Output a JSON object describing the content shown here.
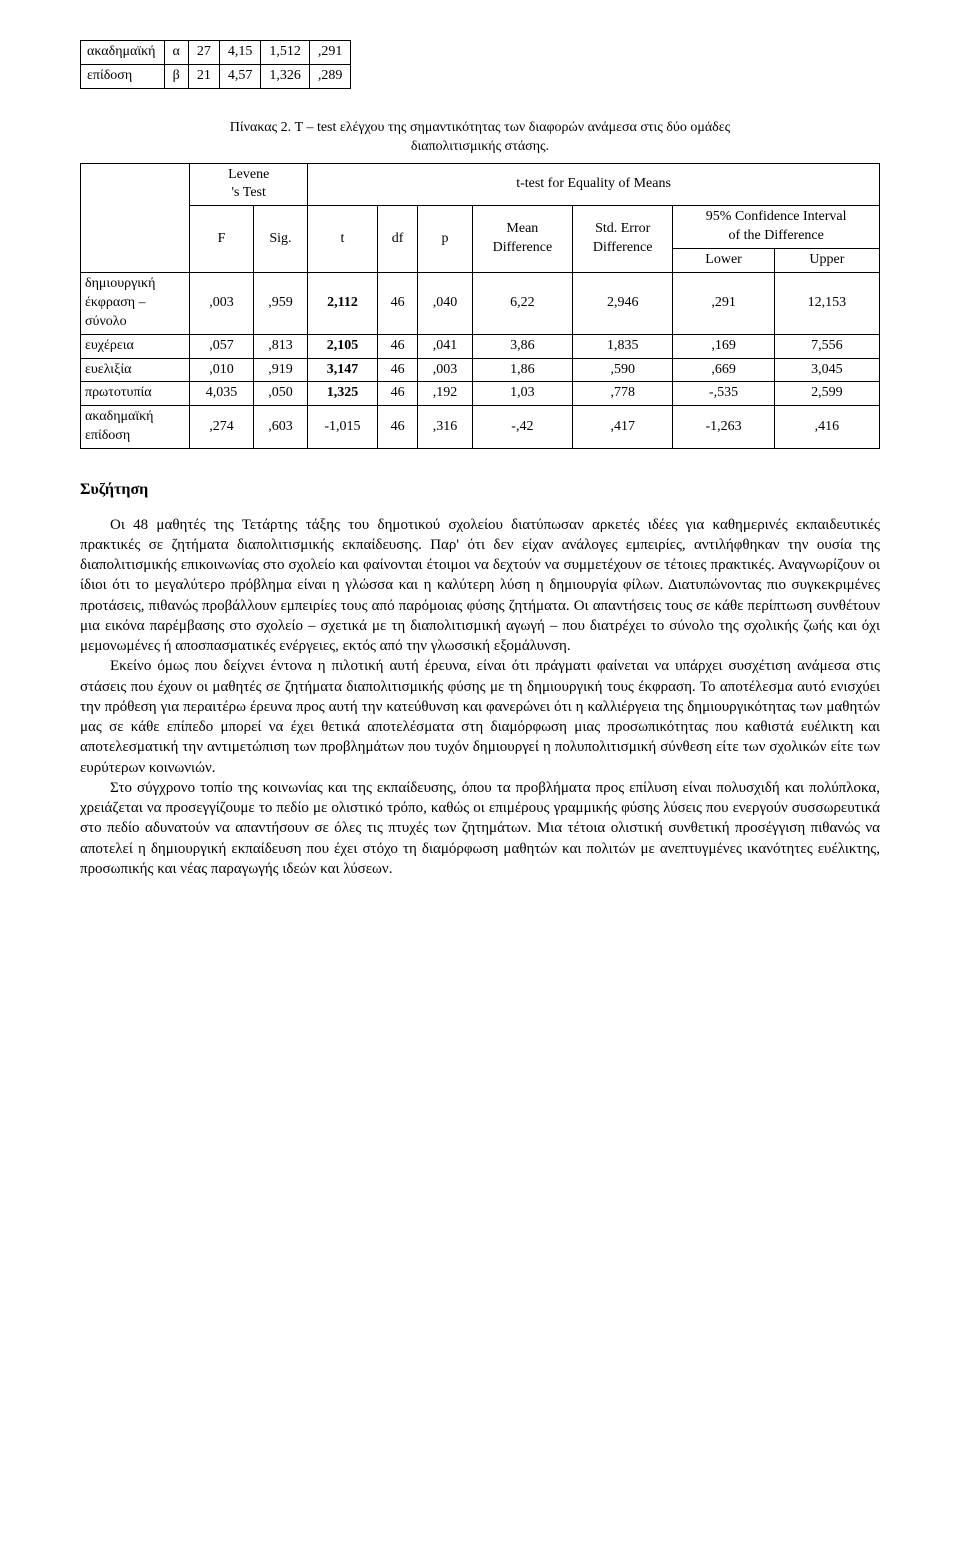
{
  "table1": {
    "rows": [
      {
        "label": "ακαδημαϊκή",
        "group": "α",
        "n": "27",
        "mean": "4,15",
        "sd": "1,512",
        "se": ",291"
      },
      {
        "label": "επίδοση",
        "group": "β",
        "n": "21",
        "mean": "4,57",
        "sd": "1,326",
        "se": ",289"
      }
    ],
    "col_widths": [
      "110",
      "40",
      "50",
      "70",
      "80",
      "80"
    ]
  },
  "table2": {
    "caption_line1": "Πίνακας 2. T – test ελέγχου της σημαντικότητας των διαφορών ανάμεσα στις δύο ομάδες",
    "caption_line2": "διαπολιτισμικής στάσης.",
    "header": {
      "levene": "Levene\n's Test",
      "ttest": "t-test for Equality of Means",
      "F": "F",
      "Sig": "Sig.",
      "t": "t",
      "df": "df",
      "p": "p",
      "mean_diff": "Mean\nDifference",
      "std_err": "Std. Error\nDifference",
      "ci": "95% Confidence Interval\nof the Difference",
      "lower": "Lower",
      "upper": "Upper"
    },
    "rows": [
      {
        "label": "δημιουργική\nέκφραση –\nσύνολο",
        "F": ",003",
        "Sig": ",959",
        "t": "2,112",
        "df": "46",
        "p": ",040",
        "md": "6,22",
        "se": "2,946",
        "lo": ",291",
        "hi": "12,153"
      },
      {
        "label": "ευχέρεια",
        "F": ",057",
        "Sig": ",813",
        "t": "2,105",
        "df": "46",
        "p": ",041",
        "md": "3,86",
        "se": "1,835",
        "lo": ",169",
        "hi": "7,556"
      },
      {
        "label": "ευελιξία",
        "F": ",010",
        "Sig": ",919",
        "t": "3,147",
        "df": "46",
        "p": ",003",
        "md": "1,86",
        "se": ",590",
        "lo": ",669",
        "hi": "3,045"
      },
      {
        "label": "πρωτοτυπία",
        "F": "4,035",
        "Sig": ",050",
        "t": "1,325",
        "df": "46",
        "p": ",192",
        "md": "1,03",
        "se": ",778",
        "lo": "-,535",
        "hi": "2,599"
      },
      {
        "label": "ακαδημαϊκή\nεπίδοση",
        "F": ",274",
        "Sig": ",603",
        "t": "-1,015",
        "df": "46",
        "p": ",316",
        "md": "-,42",
        "se": ",417",
        "lo": "-1,263",
        "hi": ",416"
      }
    ],
    "bold_t_rows": [
      0,
      1,
      2,
      3
    ]
  },
  "discussion": {
    "heading": "Συζήτηση",
    "paras": [
      "Οι 48 μαθητές της Τετάρτης τάξης του δημοτικού σχολείου διατύπωσαν αρκετές ιδέες για καθημερινές εκπαιδευτικές πρακτικές σε ζητήματα διαπολιτισμικής εκπαίδευσης. Παρ' ότι δεν είχαν ανάλογες εμπειρίες, αντιλήφθηκαν την ουσία της διαπολιτισμικής επικοινωνίας στο σχολείο και φαίνονται έτοιμοι να δεχτούν να συμμετέχουν σε τέτοιες πρακτικές. Αναγνωρίζουν οι ίδιοι ότι το μεγαλύτερο πρόβλημα είναι η γλώσσα και η καλύτερη λύση η δημιουργία φίλων. Διατυπώνοντας πιο συγκεκριμένες προτάσεις, πιθανώς προβάλλουν εμπειρίες τους από παρόμοιας φύσης ζητήματα. Οι απαντήσεις τους σε κάθε περίπτωση συνθέτουν μια εικόνα παρέμβασης στο σχολείο – σχετικά με τη διαπολιτισμική αγωγή – που διατρέχει το σύνολο της σχολικής ζωής και όχι μεμονωμένες ή αποσπασματικές ενέργειες, εκτός από την γλωσσική εξομάλυνση.",
      "Εκείνο όμως που δείχνει έντονα η πιλοτική αυτή έρευνα, είναι ότι πράγματι φαίνεται να υπάρχει συσχέτιση ανάμεσα στις στάσεις που έχουν οι μαθητές σε ζητήματα διαπολιτισμικής φύσης με τη δημιουργική τους έκφραση. Το αποτέλεσμα αυτό ενισχύει την πρόθεση για περαιτέρω έρευνα προς αυτή την κατεύθυνση και φανερώνει ότι η καλλιέργεια της δημιουργικότητας των μαθητών μας σε κάθε επίπεδο μπορεί να έχει θετικά αποτελέσματα στη διαμόρφωση μιας προσωπικότητας που καθιστά ευέλικτη και αποτελεσματική την αντιμετώπιση των προβλημάτων που τυχόν δημιουργεί η πολυπολιτισμική σύνθεση είτε των σχολικών είτε των ευρύτερων κοινωνιών.",
      "Στο σύγχρονο τοπίο της κοινωνίας και της εκπαίδευσης, όπου τα προβλήματα προς επίλυση είναι πολυσχιδή και πολύπλοκα, χρειάζεται να προσεγγίζουμε το πεδίο με ολιστικό τρόπο, καθώς οι επιμέρους γραμμικής φύσης λύσεις που ενεργούν συσσωρευτικά στο πεδίο αδυνατούν να απαντήσουν σε όλες τις πτυχές των ζητημάτων. Μια τέτοια ολιστική συνθετική προσέγγιση πιθανώς να αποτελεί η δημιουργική εκπαίδευση που έχει στόχο τη διαμόρφωση μαθητών και πολιτών με ανεπτυγμένες ικανότητες ευέλικτης, προσωπικής και νέας παραγωγής ιδεών και λύσεων."
    ]
  }
}
